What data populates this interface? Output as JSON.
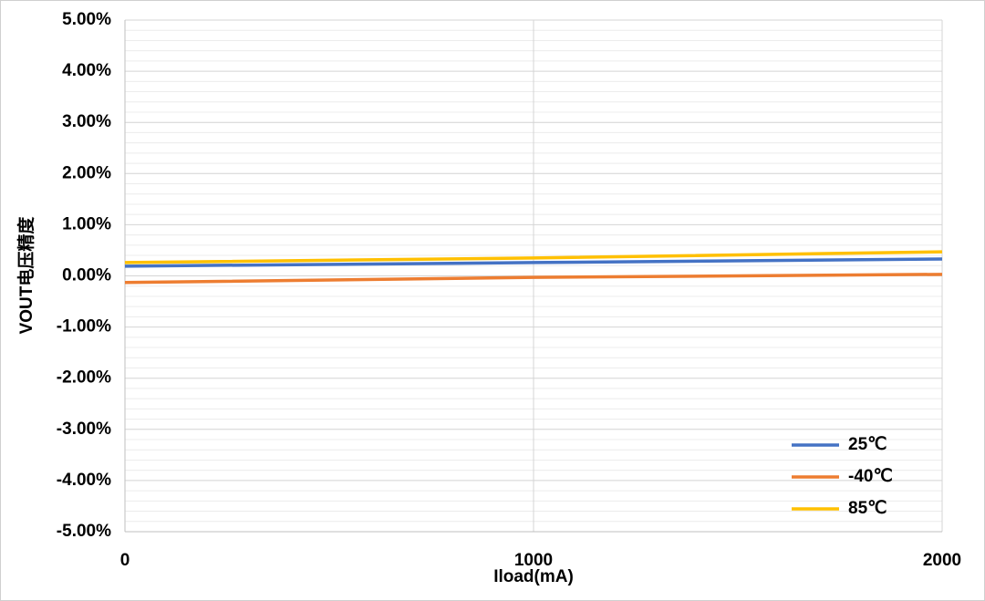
{
  "chart_data": {
    "type": "line",
    "x_label": "Iload(mA)",
    "y_label": "VOUT电压精度",
    "x": [
      0,
      1000,
      2000
    ],
    "series": [
      {
        "name": "25℃",
        "color": "#4472c4",
        "values": [
          0.19,
          0.26,
          0.33
        ]
      },
      {
        "name": "-40℃",
        "color": "#ed7d31",
        "values": [
          -0.13,
          -0.03,
          0.03
        ]
      },
      {
        "name": "85℃",
        "color": "#ffc000",
        "values": [
          0.26,
          0.35,
          0.47
        ]
      }
    ],
    "xlim": [
      0,
      2000
    ],
    "xticks": [
      0,
      1000,
      2000
    ],
    "ylim": [
      -5,
      5
    ],
    "yticks": [
      {
        "value": 5,
        "label": "5.00%"
      },
      {
        "value": 4,
        "label": "4.00%"
      },
      {
        "value": 3,
        "label": "3.00%"
      },
      {
        "value": 2,
        "label": "2.00%"
      },
      {
        "value": 1,
        "label": "1.00%"
      },
      {
        "value": 0,
        "label": "0.00%"
      },
      {
        "value": -1,
        "label": "-1.00%"
      },
      {
        "value": -2,
        "label": "-2.00%"
      },
      {
        "value": -3,
        "label": "-3.00%"
      },
      {
        "value": -4,
        "label": "-4.00%"
      },
      {
        "value": -5,
        "label": "-5.00%"
      }
    ],
    "grid": true,
    "minor_grid": true,
    "legend": "lower right"
  }
}
